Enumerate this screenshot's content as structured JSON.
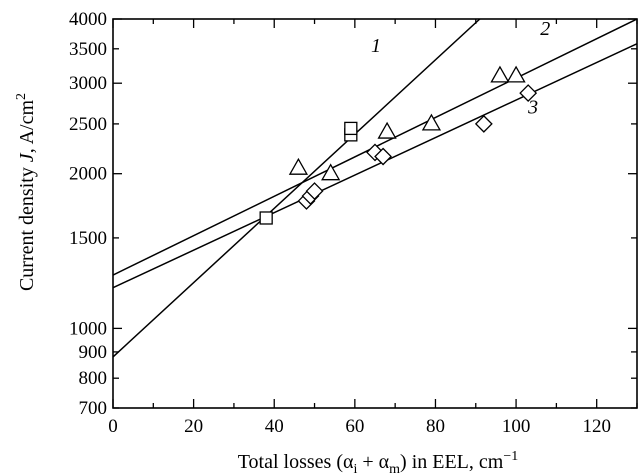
{
  "chart_data": {
    "type": "scatter",
    "xlabel_parts": {
      "prefix": "Total losses (",
      "alpha1": "α",
      "sub1": "i",
      "plus": " + ",
      "alpha2": "α",
      "sub2": "m",
      "suffix": ") in EEL, cm",
      "sup": "−1"
    },
    "ylabel_parts": {
      "prefix": "Current density ",
      "var": "J",
      "suffix": ", A/cm",
      "sup": "2"
    },
    "xlim": [
      0,
      130
    ],
    "ylim": [
      700,
      4000
    ],
    "yscale": "log",
    "x_ticks": [
      0,
      20,
      40,
      60,
      80,
      100,
      120
    ],
    "y_ticks": [
      700,
      800,
      900,
      1000,
      1500,
      2000,
      2500,
      3000,
      3500,
      4000
    ],
    "grid": false,
    "series": [
      {
        "name": "1",
        "marker": "square",
        "points": [
          [
            38,
            1640
          ],
          [
            59,
            2380
          ],
          [
            59,
            2450
          ]
        ],
        "fit": {
          "x0": 0,
          "y0": 880,
          "x1": 91,
          "y1": 4000
        }
      },
      {
        "name": "2",
        "marker": "triangle",
        "points": [
          [
            46,
            2050
          ],
          [
            54,
            2000
          ],
          [
            68,
            2410
          ],
          [
            79,
            2500
          ],
          [
            96,
            3100
          ],
          [
            100,
            3100
          ]
        ],
        "fit": {
          "x0": 0,
          "y0": 1270,
          "x1": 130,
          "y1": 4000
        }
      },
      {
        "name": "3",
        "marker": "diamond",
        "points": [
          [
            48,
            1770
          ],
          [
            49,
            1810
          ],
          [
            50,
            1850
          ],
          [
            65,
            2200
          ],
          [
            67,
            2160
          ],
          [
            92,
            2500
          ],
          [
            103,
            2870
          ]
        ],
        "fit": {
          "x0": 0,
          "y0": 1200,
          "x1": 130,
          "y1": 3580
        }
      }
    ],
    "series_label_anchor": [
      {
        "name": "1",
        "x": 64,
        "y": 3450
      },
      {
        "name": "2",
        "x": 106,
        "y": 3720
      },
      {
        "name": "3",
        "x": 103,
        "y": 2620
      }
    ]
  }
}
